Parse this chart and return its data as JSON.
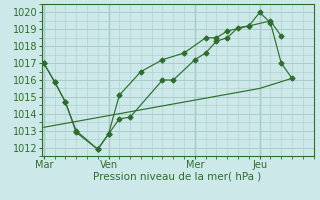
{
  "background_color": "#cce8e8",
  "grid_color": "#aacccc",
  "line_color": "#2d6e2d",
  "title": "Pression niveau de la mer( hPa )",
  "ylim": [
    1011.5,
    1020.5
  ],
  "yticks": [
    1012,
    1013,
    1014,
    1015,
    1016,
    1017,
    1018,
    1019,
    1020
  ],
  "xtick_labels": [
    "Mar",
    "Ven",
    "Mer",
    "Jeu"
  ],
  "xtick_positions": [
    0,
    3,
    7,
    10
  ],
  "xmin": -0.1,
  "xmax": 12.5,
  "series1_x": [
    0,
    0.5,
    1.0,
    1.5,
    2.5,
    3.0,
    3.5,
    4.0,
    5.5,
    6.0,
    7.0,
    7.5,
    8.0,
    8.5,
    9.0,
    9.5,
    10.0,
    10.5,
    11.0,
    11.5
  ],
  "series1_y": [
    1017.0,
    1015.9,
    1014.7,
    1013.0,
    1011.9,
    1012.8,
    1013.7,
    1013.8,
    1016.0,
    1016.0,
    1017.2,
    1017.6,
    1018.3,
    1018.5,
    1019.1,
    1019.2,
    1020.0,
    1019.4,
    1017.0,
    1016.1
  ],
  "series2_x": [
    0,
    0.5,
    1.0,
    1.5,
    2.5,
    3.0,
    3.5,
    4.5,
    5.5,
    6.5,
    7.5,
    8.0,
    8.5,
    9.5,
    10.5,
    11.0
  ],
  "series2_y": [
    1017.0,
    1015.9,
    1014.7,
    1012.9,
    1011.9,
    1012.8,
    1015.1,
    1016.5,
    1017.2,
    1017.6,
    1018.5,
    1018.5,
    1018.9,
    1019.2,
    1019.5,
    1018.6
  ],
  "series3_x": [
    0,
    10.0,
    11.5
  ],
  "series3_y": [
    1013.2,
    1015.5,
    1016.1
  ]
}
